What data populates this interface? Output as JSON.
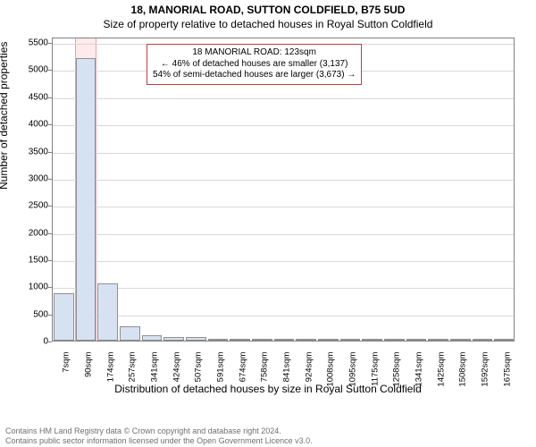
{
  "title": "18, MANORIAL ROAD, SUTTON COLDFIELD, B75 5UD",
  "subtitle": "Size of property relative to detached houses in Royal Sutton Coldfield",
  "chart": {
    "type": "histogram",
    "ylabel": "Number of detached properties",
    "xlabel": "Distribution of detached houses by size in Royal Sutton Coldfield",
    "ylim": [
      0,
      5600
    ],
    "ytick_step": 500,
    "background_color": "#ffffff",
    "grid_color": "#d8d8d8",
    "axis_color": "#808080",
    "label_fontsize": 12,
    "tick_fontsize": 10,
    "bar_fill": "#d6e2f2",
    "bar_border": "#909090",
    "highlight_fill": "#ffeaea",
    "highlight_border": "#f0a0a0",
    "bins": [
      {
        "x": 7,
        "count": 870
      },
      {
        "x": 90,
        "count": 5200,
        "highlight": true
      },
      {
        "x": 174,
        "count": 1050
      },
      {
        "x": 257,
        "count": 270
      },
      {
        "x": 341,
        "count": 100
      },
      {
        "x": 424,
        "count": 60
      },
      {
        "x": 507,
        "count": 60
      },
      {
        "x": 591,
        "count": 30
      },
      {
        "x": 674,
        "count": 2
      },
      {
        "x": 758,
        "count": 2
      },
      {
        "x": 841,
        "count": 2
      },
      {
        "x": 924,
        "count": 2
      },
      {
        "x": 1008,
        "count": 2
      },
      {
        "x": 1095,
        "count": 2
      },
      {
        "x": 1175,
        "count": 2
      },
      {
        "x": 1258,
        "count": 2
      },
      {
        "x": 1341,
        "count": 2
      },
      {
        "x": 1425,
        "count": 2
      },
      {
        "x": 1508,
        "count": 2
      },
      {
        "x": 1592,
        "count": 2
      },
      {
        "x": 1675,
        "count": 2
      }
    ],
    "xticks": [
      "7sqm",
      "90sqm",
      "174sqm",
      "257sqm",
      "341sqm",
      "424sqm",
      "507sqm",
      "591sqm",
      "674sqm",
      "758sqm",
      "841sqm",
      "924sqm",
      "1008sqm",
      "1095sqm",
      "1175sqm",
      "1258sqm",
      "1341sqm",
      "1425sqm",
      "1508sqm",
      "1592sqm",
      "1675sqm"
    ],
    "annotation": {
      "lines": [
        "18 MANORIAL ROAD: 123sqm",
        "← 46% of detached houses are smaller (3,137)",
        "54% of semi-detached houses are larger (3,673) →"
      ],
      "border_color": "#c04040",
      "fontsize": 10
    }
  },
  "footer": {
    "line1": "Contains HM Land Registry data © Crown copyright and database right 2024.",
    "line2": "Contains public sector information licensed under the Open Government Licence v3.0."
  }
}
